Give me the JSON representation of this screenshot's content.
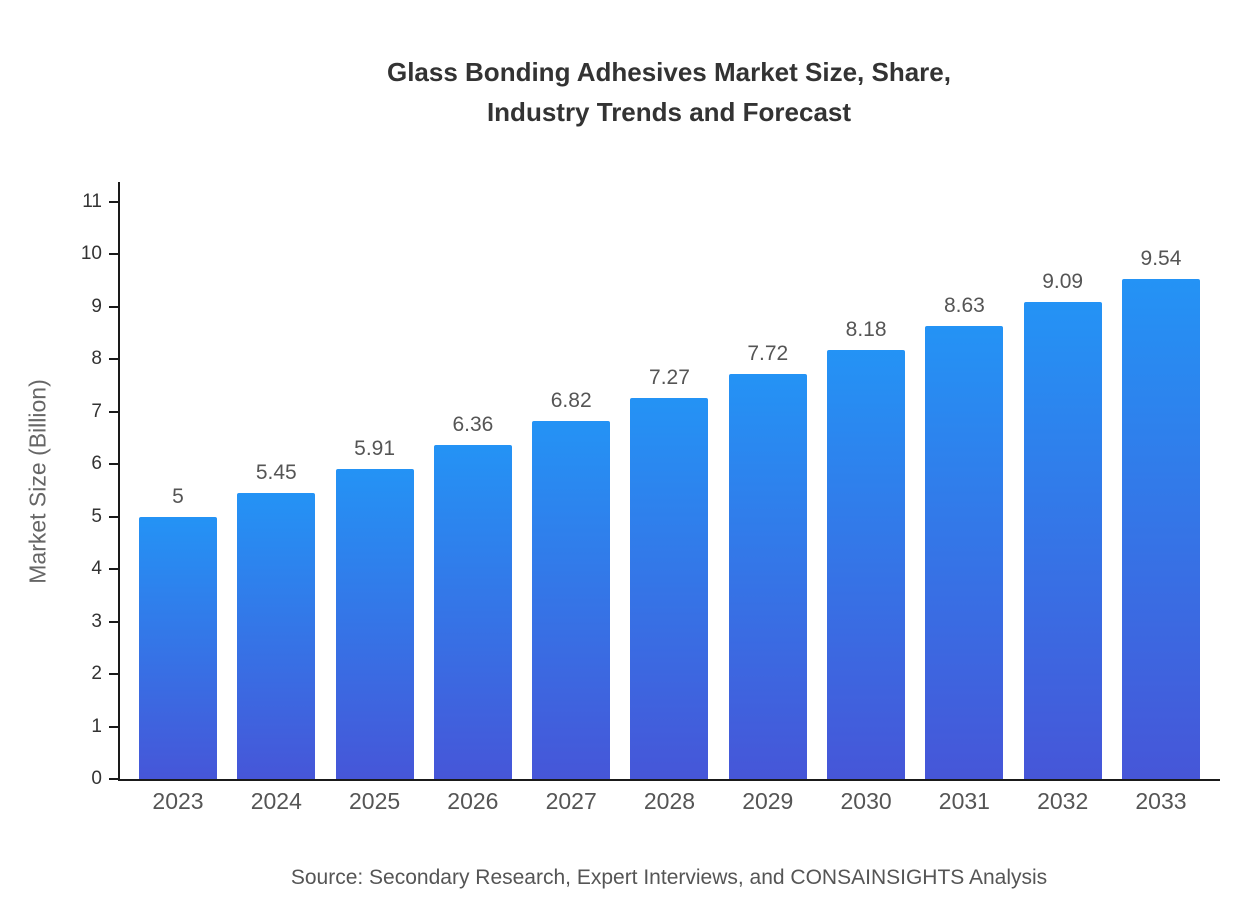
{
  "title": "Glass Bonding Adhesives Market Size, Share,\nIndustry Trends and Forecast",
  "source": "Source: Secondary Research, Expert Interviews, and CONSAINSIGHTS Analysis",
  "colors": {
    "bar_gradient_top": "#2493f5",
    "bar_gradient_bottom": "#4656d8",
    "axis": "#1a1a1a",
    "title_text": "#333333",
    "tick_text": "#333333",
    "label_text": "#555555",
    "ylabel_text": "#666666"
  },
  "chart_data": {
    "type": "bar",
    "title": "Glass Bonding Adhesives Market Size, Share,\nIndustry Trends and Forecast",
    "categories": [
      "2023",
      "2024",
      "2025",
      "2026",
      "2027",
      "2028",
      "2029",
      "2030",
      "2031",
      "2032",
      "2033"
    ],
    "values": [
      5,
      5.45,
      5.91,
      6.36,
      6.82,
      7.27,
      7.72,
      8.18,
      8.63,
      9.09,
      9.54
    ],
    "labels": [
      "5",
      "5.45",
      "5.91",
      "6.36",
      "6.82",
      "7.27",
      "7.72",
      "8.18",
      "8.63",
      "9.09",
      "9.54"
    ],
    "xlabel": "",
    "ylabel": "Market Size (Billion)",
    "ylim": [
      0,
      11
    ],
    "yticks": [
      0,
      1,
      2,
      3,
      4,
      5,
      6,
      7,
      8,
      9,
      10,
      11
    ],
    "grid": false,
    "legend": "none",
    "caption": "Source: Secondary Research, Expert Interviews, and CONSAINSIGHTS Analysis"
  }
}
